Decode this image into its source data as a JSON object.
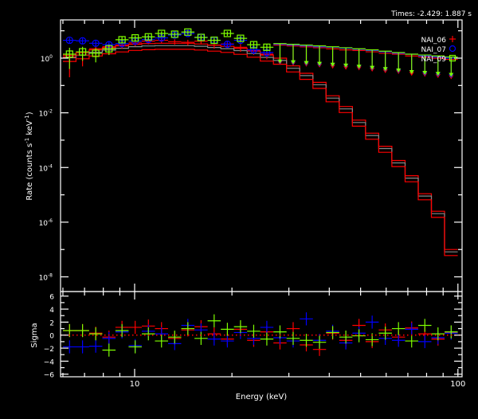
{
  "chart_data": {
    "type": "scatter",
    "header_text": "Times: -2.429: 1.887 s",
    "xlabel": "Energy (keV)",
    "ylabel_parts": [
      "Rate (counts s",
      "-1",
      " keV",
      "-1",
      ")"
    ],
    "residual_ylabel": "Sigma",
    "x_scale": "log",
    "y_scale": "log",
    "xlim": [
      5.9,
      103
    ],
    "ylim": [
      2.9e-09,
      25
    ],
    "residual_ylim": [
      -6.4,
      6.7
    ],
    "x_ticks": [
      {
        "value": 10,
        "label": "10"
      },
      {
        "value": 100,
        "label": "100"
      }
    ],
    "y_ticks": [
      {
        "value": 1,
        "exp": "0"
      },
      {
        "value": 0.01,
        "exp": "-2"
      },
      {
        "value": 0.0001,
        "exp": "-4"
      },
      {
        "value": 1e-06,
        "exp": "-6"
      },
      {
        "value": 1e-08,
        "exp": "-8"
      }
    ],
    "residual_ticks": [
      6,
      4,
      2,
      0,
      -2,
      -4,
      -6
    ],
    "legend_position": "top-right",
    "energy_bins": [
      6.29,
      6.9,
      7.58,
      8.33,
      9.14,
      10.04,
      11.03,
      12.11,
      13.3,
      14.61,
      16.05,
      17.62,
      19.36,
      21.26,
      23.35,
      25.64,
      28.16,
      30.93,
      33.97,
      37.31,
      40.98,
      45.01,
      49.43,
      54.29,
      59.63,
      65.49,
      71.93,
      79.0,
      86.77,
      95.3
    ],
    "model": [
      1.26,
      1.58,
      2.0,
      2.4,
      2.8,
      3.2,
      3.4,
      3.5,
      3.5,
      3.5,
      3.3,
      3.0,
      2.7,
      2.3,
      1.8,
      1.3,
      1.0,
      0.52,
      0.28,
      0.13,
      0.042,
      0.017,
      0.0054,
      0.0018,
      0.0006,
      0.00018,
      5e-05,
      1.1e-05,
      2.5e-06,
      1e-07
    ],
    "series": [
      {
        "name": "NAI_06",
        "color": "#ff0000",
        "marker": "plus",
        "rates": [
          1.1,
          1.3,
          2.2,
          2.6,
          3.0,
          3.6,
          4.2,
          4.5,
          4.0,
          3.8,
          4.2,
          3.0,
          3.3,
          2.5,
          1.9,
          1.4
        ],
        "errors": [
          0.9,
          0.8,
          0.9,
          0.8,
          0.8,
          0.9,
          1.0,
          1.0,
          0.9,
          0.9,
          1.0,
          0.8,
          0.9,
          0.8,
          0.6,
          0.5
        ],
        "upper_limits": [
          3.0,
          2.8,
          2.6,
          2.4,
          2.2,
          2.0,
          1.9,
          1.7,
          1.5,
          1.4,
          1.2,
          1.1,
          1.0,
          0.9
        ],
        "residuals": [
          0.7,
          0.7,
          0.3,
          -0.3,
          1.2,
          1.2,
          1.4,
          1.0,
          -0.5,
          0.8,
          1.3,
          0.2,
          -0.6,
          0.9,
          -0.8,
          0.5,
          -1.2,
          1.0,
          -1.5,
          -2.2,
          0.3,
          -0.8,
          1.5,
          -1.0,
          0.8,
          -0.3,
          1.1,
          0.2,
          -0.6,
          0.4
        ]
      },
      {
        "name": "NAI_07",
        "color": "#0000ff",
        "marker": "circle",
        "rates": [
          4.5,
          4.3,
          3.5,
          3.1,
          3.4,
          4.2,
          4.8,
          5.5,
          7.0,
          8.0,
          5.8,
          4.5,
          3.2,
          4.5,
          2.0,
          1.6
        ],
        "errors": [
          1.0,
          1.0,
          0.9,
          0.8,
          0.9,
          1.0,
          1.1,
          1.2,
          1.3,
          1.4,
          1.1,
          1.0,
          0.8,
          1.0,
          0.6,
          0.5
        ],
        "upper_limits": [
          3.2,
          3.0,
          2.8,
          2.6,
          2.5,
          2.3,
          2.1,
          1.9,
          1.7,
          1.5,
          1.4,
          1.2,
          1.1,
          1.0
        ],
        "residuals": [
          -1.8,
          -1.8,
          -1.7,
          -0.5,
          0.5,
          -1.6,
          0.6,
          0.2,
          -1.3,
          1.5,
          0.8,
          -0.6,
          -0.9,
          0.4,
          -0.5,
          1.2,
          -0.4,
          -0.9,
          2.5,
          -0.8,
          0.6,
          -1.2,
          0.3,
          2.0,
          -0.5,
          -0.8,
          0.9,
          -1.0,
          -0.4,
          0.3
        ]
      },
      {
        "name": "NAI_09",
        "color": "#7fff00",
        "marker": "square",
        "rates": [
          1.4,
          1.7,
          1.5,
          2.2,
          4.7,
          5.5,
          6.0,
          8.0,
          7.5,
          9.0,
          5.7,
          4.5,
          8.0,
          5.3,
          3.1,
          2.5
        ],
        "errors": [
          1.0,
          0.9,
          0.8,
          0.9,
          1.2,
          1.2,
          1.3,
          1.5,
          1.4,
          1.5,
          1.2,
          1.0,
          1.5,
          1.1,
          0.8,
          0.7
        ],
        "upper_limits": [
          3.4,
          3.2,
          3.0,
          2.8,
          2.6,
          2.4,
          2.2,
          2.0,
          1.8,
          1.6,
          1.4,
          1.3,
          1.2,
          1.1
        ],
        "residuals": [
          0.7,
          0.7,
          0.2,
          -2.3,
          0.7,
          -1.8,
          0.2,
          -0.9,
          -0.3,
          1.0,
          -0.5,
          2.2,
          0.9,
          1.3,
          0.6,
          -0.6,
          0.5,
          -0.5,
          -0.8,
          -1.1,
          0.4,
          -0.3,
          -0.1,
          -0.7,
          0.3,
          1.0,
          -0.9,
          1.5,
          0.2,
          0.5
        ]
      }
    ]
  }
}
